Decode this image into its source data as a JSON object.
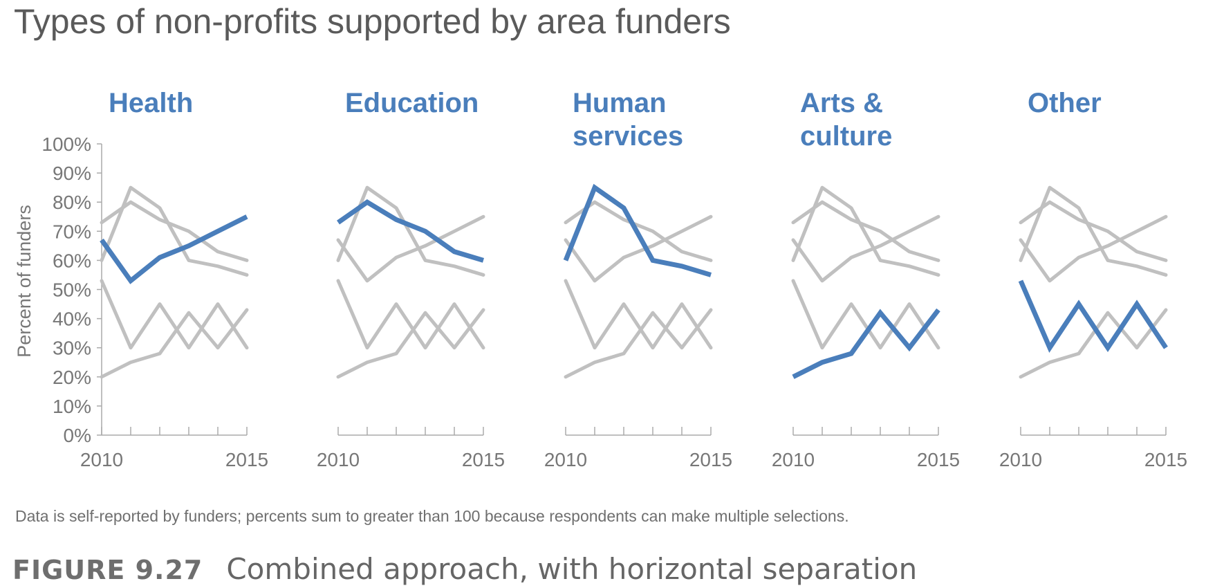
{
  "title": "Types of non-profits supported by area funders",
  "note": "Data is self-reported by funders; percents sum to greater than 100 because respondents can make multiple selections.",
  "figure": {
    "label": "FIGURE 9.27",
    "caption": "Combined approach, with horizontal separation"
  },
  "colors": {
    "highlight": "#4a7ebb",
    "context": "#c0c0c0",
    "axis": "#aaaaaa",
    "text": "#777777",
    "title": "#5a5a5a"
  },
  "chart_data": {
    "type": "line",
    "ylabel": "Percent of funders",
    "ylim": [
      0,
      100
    ],
    "yticks": [
      "0%",
      "10%",
      "20%",
      "30%",
      "40%",
      "50%",
      "60%",
      "70%",
      "80%",
      "90%",
      "100%"
    ],
    "x": [
      2010,
      2011,
      2012,
      2013,
      2014,
      2015
    ],
    "xtick_labels": [
      "2010",
      "2015"
    ],
    "series": [
      {
        "name": "Health",
        "values": [
          67,
          53,
          61,
          65,
          70,
          75
        ]
      },
      {
        "name": "Education",
        "values": [
          73,
          80,
          74,
          70,
          63,
          60
        ]
      },
      {
        "name": "Human services",
        "values": [
          60,
          85,
          78,
          60,
          58,
          55
        ]
      },
      {
        "name": "Arts & culture",
        "values": [
          20,
          25,
          28,
          42,
          30,
          43
        ]
      },
      {
        "name": "Other",
        "values": [
          53,
          30,
          45,
          30,
          45,
          30
        ]
      }
    ],
    "panels": [
      {
        "title_lines": [
          "Health"
        ],
        "highlight": 0
      },
      {
        "title_lines": [
          "Education"
        ],
        "highlight": 1
      },
      {
        "title_lines": [
          "Human",
          "services"
        ],
        "highlight": 2
      },
      {
        "title_lines": [
          "Arts &",
          "culture"
        ],
        "highlight": 3
      },
      {
        "title_lines": [
          "Other"
        ],
        "highlight": 4
      }
    ]
  }
}
